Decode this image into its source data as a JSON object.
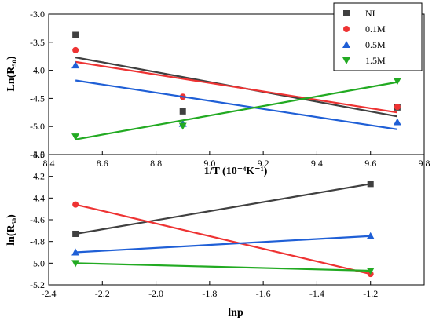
{
  "chart_data": [
    {
      "type": "scatter",
      "title": "",
      "xlabel": "1/T (10⁻⁴K⁻¹)",
      "ylabel": "Ln(R₅₀)",
      "xlim": [
        8.4,
        9.8
      ],
      "ylim": [
        -5.5,
        -3.0
      ],
      "xticks": [
        "8.4",
        "8.6",
        "8.8",
        "9.0",
        "9.2",
        "9.4",
        "9.6",
        "9.8"
      ],
      "yticks": [
        "-5.5",
        "-5.0",
        "-4.5",
        "-4.0",
        "-3.5",
        "-3.0"
      ],
      "legend_position": "top-right",
      "grid": false,
      "series": [
        {
          "name": "NI",
          "color": "#404040",
          "marker": "square",
          "points": [
            [
              8.5,
              -3.37
            ],
            [
              8.9,
              -4.73
            ],
            [
              9.7,
              -4.66
            ]
          ],
          "fit": [
            [
              8.5,
              -3.77
            ],
            [
              9.7,
              -4.82
            ]
          ]
        },
        {
          "name": "0.1M",
          "color": "#ee3333",
          "marker": "circle",
          "points": [
            [
              8.5,
              -3.64
            ],
            [
              8.9,
              -4.47
            ],
            [
              9.7,
              -4.65
            ]
          ],
          "fit": [
            [
              8.5,
              -3.85
            ],
            [
              9.7,
              -4.75
            ]
          ]
        },
        {
          "name": "0.5M",
          "color": "#1f5fd6",
          "marker": "triangle-up",
          "points": [
            [
              8.5,
              -3.91
            ],
            [
              8.9,
              -4.95
            ],
            [
              9.7,
              -4.92
            ]
          ],
          "fit": [
            [
              8.5,
              -4.18
            ],
            [
              9.7,
              -5.05
            ]
          ]
        },
        {
          "name": "1.5M",
          "color": "#22aa22",
          "marker": "triangle-down",
          "points": [
            [
              8.5,
              -5.18
            ],
            [
              8.9,
              -4.99
            ],
            [
              9.7,
              -4.19
            ]
          ],
          "fit": [
            [
              8.5,
              -5.23
            ],
            [
              9.7,
              -4.21
            ]
          ]
        }
      ]
    },
    {
      "type": "scatter",
      "title": "",
      "xlabel": "lnp",
      "ylabel": "ln(R₅₀)",
      "xlim": [
        -2.4,
        -1.0
      ],
      "ylim": [
        -5.2,
        -4.0
      ],
      "xticks": [
        "-2.4",
        "-2.2",
        "-2.0",
        "-1.8",
        "-1.6",
        "-1.4",
        "-1.2"
      ],
      "yticks": [
        "-5.2",
        "-5.0",
        "-4.8",
        "-4.6",
        "-4.4",
        "-4.2",
        "-4.0"
      ],
      "grid": false,
      "series": [
        {
          "color": "#404040",
          "marker": "square",
          "points": [
            [
              -2.3,
              -4.73
            ],
            [
              -1.2,
              -4.27
            ]
          ],
          "fit": [
            [
              -2.3,
              -4.73
            ],
            [
              -1.2,
              -4.27
            ]
          ]
        },
        {
          "color": "#ee3333",
          "marker": "circle",
          "points": [
            [
              -2.3,
              -4.46
            ],
            [
              -1.2,
              -5.1
            ]
          ],
          "fit": [
            [
              -2.3,
              -4.46
            ],
            [
              -1.2,
              -5.1
            ]
          ]
        },
        {
          "color": "#1f5fd6",
          "marker": "triangle-up",
          "points": [
            [
              -2.3,
              -4.9
            ],
            [
              -1.2,
              -4.75
            ]
          ],
          "fit": [
            [
              -2.3,
              -4.9
            ],
            [
              -1.2,
              -4.75
            ]
          ]
        },
        {
          "color": "#22aa22",
          "marker": "triangle-down",
          "points": [
            [
              -2.3,
              -5.0
            ],
            [
              -1.2,
              -5.07
            ]
          ],
          "fit": [
            [
              -2.3,
              -5.0
            ],
            [
              -1.2,
              -5.07
            ]
          ]
        }
      ]
    }
  ]
}
